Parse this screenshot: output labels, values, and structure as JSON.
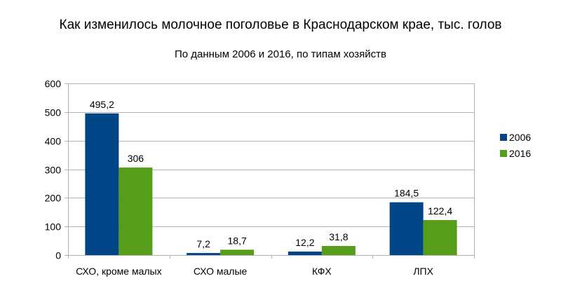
{
  "chart_data": {
    "type": "bar",
    "title": "Как изменилось молочное поголовье в Краснодарском крае, тыс. голов",
    "subtitle": "По данным 2006 и 2016, по типам хозяйств",
    "categories": [
      "СХО, кроме малых",
      "СХО малые",
      "КФХ",
      "ЛПХ"
    ],
    "series": [
      {
        "name": "2006",
        "color": "#004586",
        "values": [
          495.2,
          7.2,
          12.2,
          184.5
        ],
        "labels": [
          "495,2",
          "7,2",
          "12,2",
          "184,5"
        ]
      },
      {
        "name": "2016",
        "color": "#579d1c",
        "values": [
          306,
          18.7,
          31.8,
          122.4
        ],
        "labels": [
          "306",
          "18,7",
          "31,8",
          "122,4"
        ]
      }
    ],
    "ylim": [
      0,
      600
    ],
    "yticks": [
      "0",
      "100",
      "200",
      "300",
      "400",
      "500",
      "600"
    ],
    "xlabel": "",
    "ylabel": "",
    "grid": true,
    "legend": "right"
  }
}
